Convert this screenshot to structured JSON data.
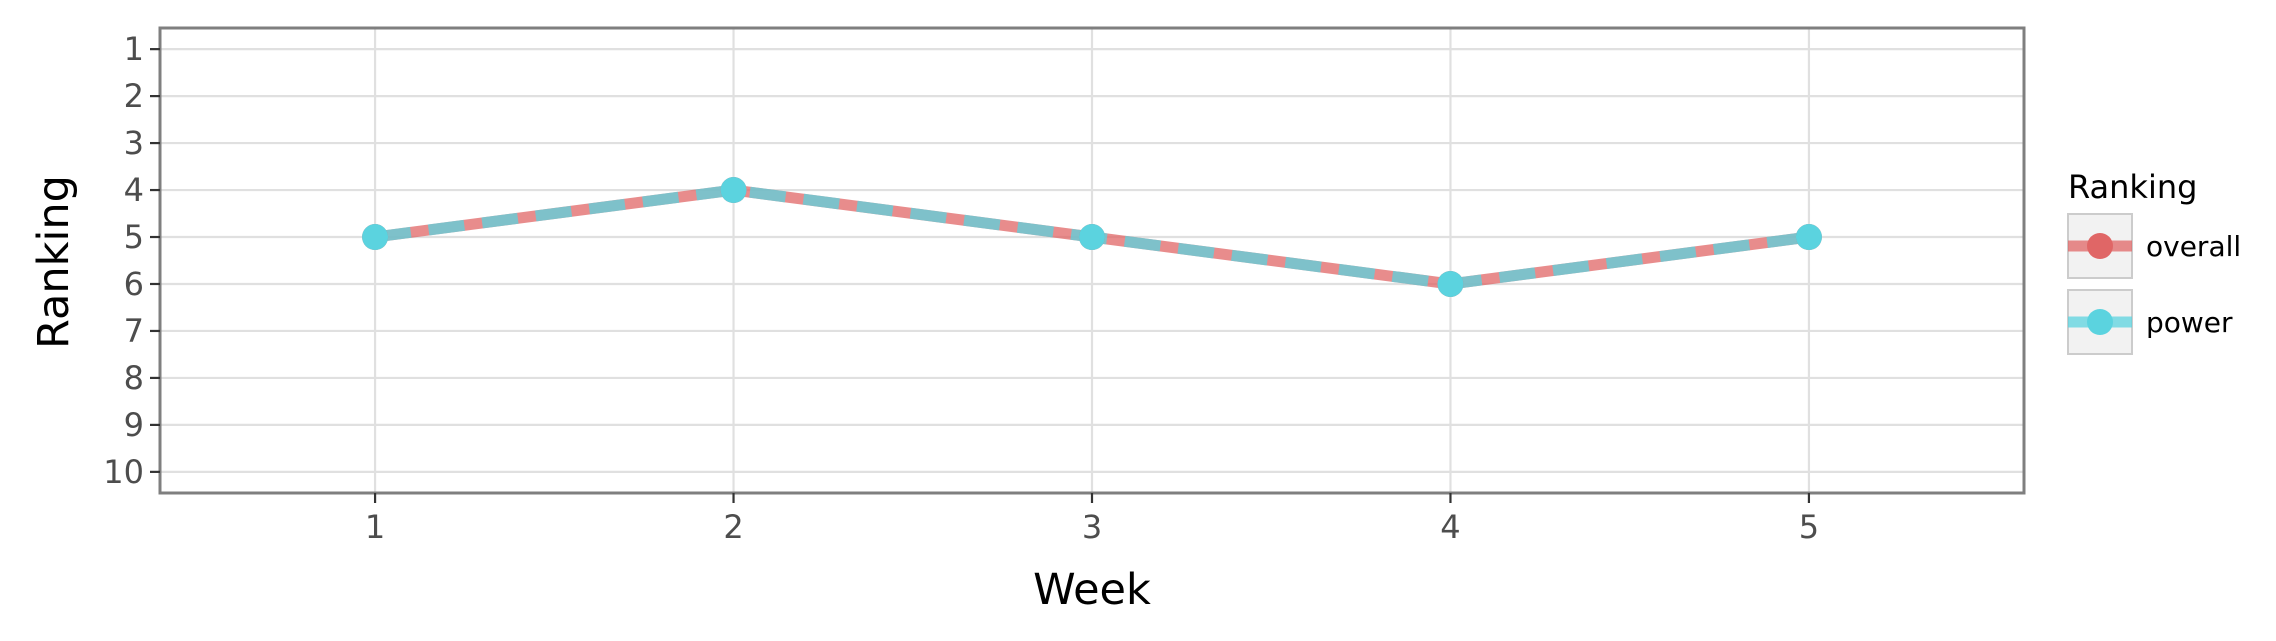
{
  "chart_data": {
    "type": "line",
    "title": "",
    "xlabel": "Week",
    "ylabel": "Ranking",
    "x": [
      1,
      2,
      3,
      4,
      5
    ],
    "xlim": [
      0.4,
      5.6
    ],
    "ylim": [
      10.45,
      0.55
    ],
    "y_reversed": true,
    "xticks": [
      "1",
      "2",
      "3",
      "4",
      "5"
    ],
    "yticks": [
      "1",
      "2",
      "3",
      "4",
      "5",
      "6",
      "7",
      "8",
      "9",
      "10"
    ],
    "grid": true,
    "legend": {
      "title": "Ranking",
      "placement": "right",
      "entries": [
        "overall",
        "power"
      ]
    },
    "series": [
      {
        "name": "overall",
        "values": [
          5,
          4,
          5,
          6,
          5
        ],
        "color": "#e06666",
        "style": "solid"
      },
      {
        "name": "power",
        "values": [
          5,
          4,
          5,
          6,
          5
        ],
        "color": "#5bd3df",
        "style": "dashed"
      }
    ],
    "colors": {
      "panel_border": "#7f7f7f",
      "grid": "#e0e0e0",
      "overall": "#e06666",
      "power": "#5bd3df"
    }
  }
}
